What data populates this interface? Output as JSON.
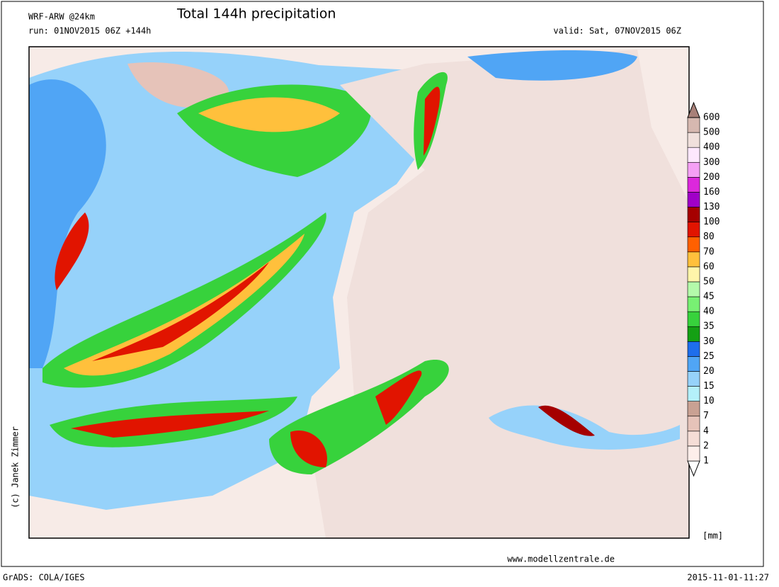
{
  "header": {
    "model": "WRF-ARW @24km",
    "title": "Total 144h precipitation",
    "run": "run: 01NOV2015 06Z +144h",
    "valid": "valid: Sat, 07NOV2015 06Z"
  },
  "legend": {
    "unit": "[mm]",
    "levels": [
      1,
      2,
      4,
      7,
      10,
      15,
      20,
      25,
      30,
      35,
      40,
      45,
      50,
      60,
      70,
      80,
      100,
      130,
      160,
      200,
      300,
      400,
      500,
      600
    ],
    "colors": [
      "#ffffff",
      "#fdeeea",
      "#f5ddd6",
      "#e6c3b9",
      "#c9a193",
      "#b4f0fa",
      "#96d2fa",
      "#50a5f5",
      "#1e6eeb",
      "#14a014",
      "#37d23c",
      "#78f073",
      "#b4faaa",
      "#fff5aa",
      "#ffc03c",
      "#ff6000",
      "#e11400",
      "#a50000",
      "#a000c8",
      "#dc28dc",
      "#f5a0f5",
      "#fde8fd",
      "#f0e0dc",
      "#d6b8b0",
      "#a88078"
    ]
  },
  "credits": {
    "author": "(c) Janek Zimmer",
    "website": "www.modellzentrale.de",
    "software": "GrADS: COLA/IGES",
    "timestamp": "2015-11-01-11:27"
  }
}
